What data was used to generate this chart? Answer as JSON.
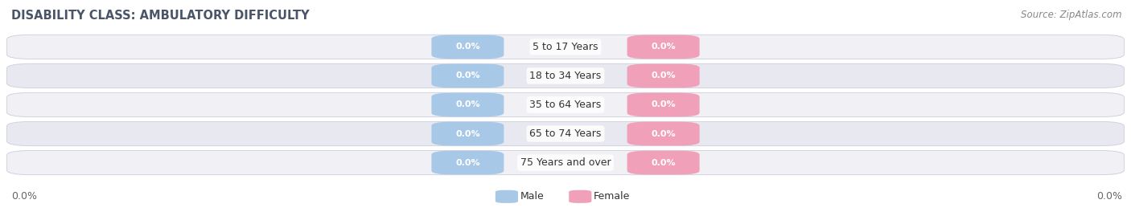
{
  "title": "DISABILITY CLASS: AMBULATORY DIFFICULTY",
  "source": "Source: ZipAtlas.com",
  "categories": [
    "5 to 17 Years",
    "18 to 34 Years",
    "35 to 64 Years",
    "65 to 74 Years",
    "75 Years and over"
  ],
  "male_values": [
    "0.0%",
    "0.0%",
    "0.0%",
    "0.0%",
    "0.0%"
  ],
  "female_values": [
    "0.0%",
    "0.0%",
    "0.0%",
    "0.0%",
    "0.0%"
  ],
  "male_color": "#a8c8e8",
  "female_color": "#f0a0b8",
  "male_label": "Male",
  "female_label": "Female",
  "row_bg_color_odd": "#f0f0f5",
  "row_bg_color_even": "#e8e8f0",
  "bar_border_color": "#ccccdd",
  "x_left_label": "0.0%",
  "x_right_label": "0.0%",
  "title_fontsize": 10.5,
  "source_fontsize": 8.5,
  "value_fontsize": 8,
  "cat_fontsize": 9,
  "legend_fontsize": 9,
  "axis_fontsize": 9,
  "background_color": "#ffffff",
  "title_color": "#4a5568",
  "source_color": "#888888",
  "cat_text_color": "#333333",
  "axis_label_color": "#666666"
}
